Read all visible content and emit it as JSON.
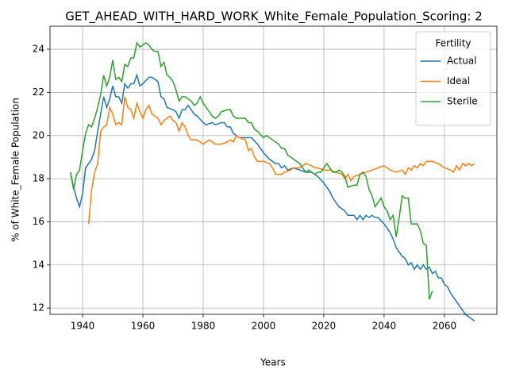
{
  "chart_data": {
    "type": "line",
    "title": "GET_AHEAD_WITH_HARD_WORK_White_Female_Population_Scoring: 2",
    "xlabel": "Years",
    "ylabel": "% of White_Female Population",
    "legend_title": "Fertility",
    "legend": "upper right",
    "grid": true,
    "xlim": [
      1929.2,
      2077.4
    ],
    "ylim": [
      11.71,
      25.07
    ],
    "xticks": [
      1940,
      1960,
      1980,
      2000,
      2020,
      2040,
      2060
    ],
    "yticks": [
      12,
      14,
      16,
      18,
      20,
      22,
      24
    ],
    "series": [
      {
        "name": "Actual",
        "color": "#1f77b4",
        "x": [
          1936,
          1937,
          1938,
          1939,
          1940,
          1941,
          1943,
          1944,
          1945,
          1946,
          1947,
          1948,
          1949,
          1950,
          1951,
          1952,
          1953,
          1954,
          1955,
          1956,
          1957,
          1958,
          1959,
          1960,
          1962,
          1963,
          1965,
          1966,
          1967,
          1968,
          1970,
          1971,
          1972,
          1973,
          1974,
          1975,
          1976,
          1977,
          1978,
          1980,
          1981,
          1983,
          1984,
          1986,
          1987,
          1988,
          1989,
          1990,
          1992,
          1994,
          1996,
          1998,
          2000,
          2002,
          2004,
          2005,
          2006,
          2007,
          2008,
          2010,
          2012,
          2014,
          2016,
          2018,
          2020,
          2022,
          2023,
          2025,
          2027,
          2028,
          2030,
          2031,
          2032,
          2033,
          2034,
          2035,
          2036,
          2037,
          2038,
          2040,
          2042,
          2043,
          2044,
          2046,
          2047,
          2048,
          2049,
          2050,
          2051,
          2052,
          2053,
          2054,
          2055,
          2056,
          2057,
          2058,
          2059,
          2060,
          2061,
          2062,
          2063,
          2064,
          2065,
          2066,
          2067,
          2069,
          2070
        ],
        "values": [
          18.3,
          17.6,
          17.1,
          16.7,
          17.3,
          18.5,
          18.9,
          19.3,
          20.2,
          21.0,
          21.8,
          21.3,
          21.7,
          22.3,
          21.8,
          21.8,
          21.5,
          22.4,
          22.2,
          22.4,
          22.4,
          22.8,
          22.3,
          22.4,
          22.7,
          22.7,
          22.5,
          21.8,
          21.7,
          21.3,
          21.2,
          21.1,
          20.8,
          21.2,
          21.2,
          21.4,
          21.2,
          21.0,
          20.9,
          20.6,
          20.5,
          20.6,
          20.5,
          20.6,
          20.6,
          20.4,
          20.4,
          20.1,
          19.9,
          19.9,
          19.9,
          19.6,
          19.2,
          18.9,
          18.7,
          18.7,
          18.5,
          18.6,
          18.4,
          18.5,
          18.4,
          18.3,
          18.3,
          18.1,
          17.8,
          17.4,
          17.1,
          16.7,
          16.5,
          16.3,
          16.3,
          16.1,
          16.3,
          16.1,
          16.3,
          16.2,
          16.3,
          16.2,
          16.2,
          15.9,
          15.5,
          15.2,
          14.8,
          14.4,
          14.3,
          14.0,
          14.1,
          13.8,
          14.0,
          13.8,
          14.0,
          13.8,
          13.9,
          13.6,
          13.7,
          13.4,
          13.4,
          13.1,
          13.0,
          12.7,
          12.5,
          12.3,
          12.1,
          11.9,
          11.7,
          11.5,
          11.4
        ]
      },
      {
        "name": "Ideal",
        "color": "#ff7f0e",
        "x": [
          1942,
          1943,
          1944,
          1945,
          1946,
          1947,
          1948,
          1949,
          1950,
          1951,
          1952,
          1953,
          1954,
          1955,
          1956,
          1957,
          1958,
          1959,
          1960,
          1961,
          1962,
          1963,
          1964,
          1965,
          1966,
          1967,
          1968,
          1969,
          1970,
          1971,
          1972,
          1973,
          1974,
          1975,
          1976,
          1978,
          1979,
          1980,
          1981,
          1982,
          1983,
          1984,
          1985,
          1986,
          1988,
          1989,
          1990,
          1991,
          1992,
          1994,
          1995,
          1996,
          1997,
          1998,
          2000,
          2002,
          2003,
          2004,
          2006,
          2007,
          2009,
          2010,
          2012,
          2014,
          2016,
          2017,
          2018,
          2020,
          2022,
          2024,
          2026,
          2027,
          2028,
          2029,
          2030,
          2032,
          2034,
          2036,
          2038,
          2040,
          2042,
          2044,
          2046,
          2047,
          2048,
          2049,
          2050,
          2051,
          2052,
          2053,
          2054,
          2056,
          2058,
          2059,
          2060,
          2062,
          2063,
          2064,
          2065,
          2066,
          2067,
          2068,
          2069,
          2070
        ],
        "values": [
          15.9,
          17.5,
          18.3,
          18.7,
          20.2,
          20.4,
          20.5,
          21.3,
          21.0,
          20.5,
          20.6,
          20.5,
          21.8,
          21.3,
          21.2,
          20.8,
          21.5,
          21.1,
          20.8,
          21.2,
          21.4,
          21.0,
          20.9,
          20.8,
          20.5,
          20.7,
          20.8,
          20.9,
          20.7,
          20.6,
          20.2,
          20.6,
          20.4,
          20.0,
          19.8,
          19.8,
          19.7,
          19.6,
          19.7,
          19.8,
          19.7,
          19.6,
          19.6,
          19.6,
          19.7,
          19.8,
          19.7,
          20.0,
          19.9,
          19.8,
          19.3,
          19.4,
          19.0,
          18.8,
          18.8,
          18.7,
          18.5,
          18.2,
          18.2,
          18.3,
          18.4,
          18.5,
          18.5,
          18.7,
          18.6,
          18.5,
          18.5,
          18.4,
          18.4,
          18.3,
          18.2,
          18.0,
          18.2,
          17.9,
          18.1,
          18.2,
          18.3,
          18.4,
          18.5,
          18.6,
          18.4,
          18.3,
          18.4,
          18.2,
          18.5,
          18.4,
          18.6,
          18.5,
          18.7,
          18.6,
          18.8,
          18.8,
          18.7,
          18.6,
          18.5,
          18.4,
          18.3,
          18.6,
          18.4,
          18.7,
          18.6,
          18.7,
          18.6,
          18.7
        ]
      },
      {
        "name": "Sterile",
        "color": "#2ca02c",
        "x": [
          1936,
          1937,
          1938,
          1939,
          1940,
          1941,
          1942,
          1943,
          1944,
          1945,
          1946,
          1947,
          1948,
          1949,
          1950,
          1951,
          1952,
          1953,
          1954,
          1955,
          1956,
          1957,
          1958,
          1959,
          1960,
          1961,
          1962,
          1963,
          1964,
          1965,
          1966,
          1967,
          1968,
          1969,
          1970,
          1971,
          1972,
          1973,
          1974,
          1975,
          1976,
          1977,
          1978,
          1979,
          1980,
          1981,
          1982,
          1983,
          1984,
          1985,
          1986,
          1988,
          1989,
          1990,
          1991,
          1994,
          1995,
          1996,
          1997,
          1998,
          2000,
          2001,
          2003,
          2004,
          2005,
          2006,
          2007,
          2008,
          2010,
          2012,
          2013,
          2014,
          2015,
          2016,
          2017,
          2018,
          2019,
          2020,
          2021,
          2022,
          2023,
          2024,
          2025,
          2026,
          2027,
          2028,
          2030,
          2031,
          2032,
          2033,
          2034,
          2035,
          2036,
          2037,
          2038,
          2039,
          2040,
          2041,
          2042,
          2043,
          2044,
          2045,
          2046,
          2047,
          2048,
          2049,
          2051,
          2052,
          2053,
          2054,
          2055,
          2056
        ],
        "values": [
          18.3,
          17.5,
          18.2,
          18.4,
          19.3,
          20.1,
          20.5,
          20.4,
          20.8,
          21.3,
          21.9,
          22.8,
          22.3,
          22.7,
          23.5,
          22.6,
          22.7,
          22.5,
          23.3,
          23.2,
          23.6,
          23.6,
          24.3,
          24.1,
          24.2,
          24.3,
          24.2,
          24.0,
          23.9,
          23.9,
          23.2,
          23.4,
          22.8,
          22.7,
          22.5,
          22.1,
          21.6,
          21.8,
          21.8,
          21.7,
          21.6,
          21.4,
          21.5,
          21.8,
          21.5,
          21.3,
          21.1,
          20.9,
          20.8,
          20.9,
          21.1,
          21.2,
          21.2,
          20.9,
          20.8,
          20.8,
          20.6,
          20.6,
          20.3,
          20.2,
          19.9,
          20.0,
          19.8,
          19.7,
          19.6,
          19.4,
          19.4,
          19.1,
          18.9,
          18.7,
          18.5,
          18.3,
          18.4,
          18.3,
          18.2,
          18.3,
          18.3,
          18.5,
          18.7,
          18.5,
          18.3,
          18.3,
          18.4,
          18.3,
          18.1,
          17.6,
          17.7,
          17.7,
          18.2,
          18.3,
          18.1,
          17.5,
          17.2,
          16.7,
          16.9,
          17.1,
          16.7,
          16.5,
          16.1,
          16.3,
          15.3,
          16.2,
          17.2,
          17.1,
          17.1,
          15.9,
          15.9,
          15.6,
          15.0,
          14.9,
          12.4,
          12.8
        ]
      }
    ]
  }
}
